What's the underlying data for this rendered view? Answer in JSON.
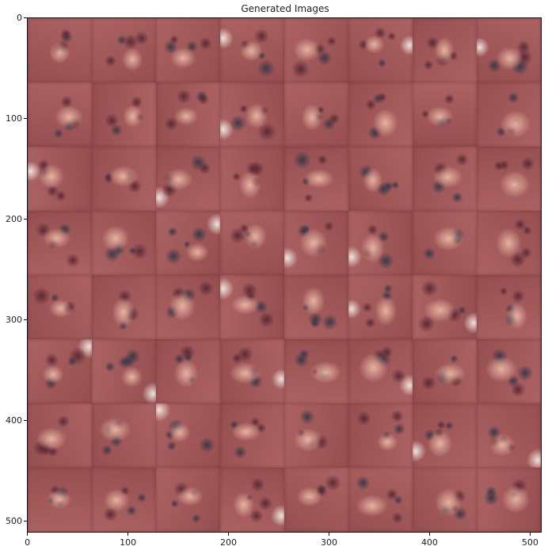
{
  "figure": {
    "title": "Generated Images",
    "grid": {
      "rows": 8,
      "cols": 8
    },
    "x_axis": {
      "ticks": [
        "0",
        "100",
        "200",
        "300",
        "400",
        "500"
      ],
      "values": [
        0,
        100,
        200,
        300,
        400,
        500
      ],
      "range": [
        0,
        512
      ]
    },
    "y_axis": {
      "ticks": [
        "0",
        "100",
        "200",
        "300",
        "400",
        "500"
      ],
      "values": [
        0,
        100,
        200,
        300,
        400,
        500
      ],
      "range": [
        0,
        512
      ]
    },
    "palette": {
      "base": "#a65b5b",
      "light": "#e6b2a0",
      "dark": "#5a2a35",
      "shadow": "#3c3848",
      "highlight": "#f2e6e0"
    }
  }
}
